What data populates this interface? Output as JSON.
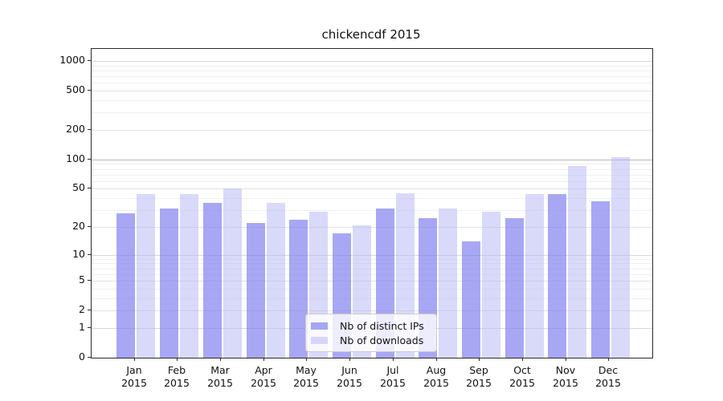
{
  "title": "chickencdf 2015",
  "colors": {
    "bar_distinct_ips": "#8282f0",
    "bar_distinct_ips_alpha": 0.7,
    "bar_downloads": "#b4b4f5",
    "bar_downloads_alpha": 0.5,
    "gridline_emphasized": "#b5b5b5",
    "gridline_decade": "#d8d8d8",
    "gridline_labeled": "#e2e2e2",
    "gridline_minor": "#f0f0f0",
    "axis_spine": "#2a2a2a"
  },
  "legend": {
    "items": [
      {
        "label": "Nb of distinct IPs",
        "color": "#8282f0",
        "alpha": 0.7
      },
      {
        "label": "Nb of downloads",
        "color": "#b4b4f5",
        "alpha": 0.5
      }
    ]
  },
  "y_axis": {
    "tick_values": [
      0,
      1,
      2,
      5,
      10,
      20,
      50,
      100,
      200,
      500,
      1000
    ],
    "tick_labels": [
      "0",
      "1",
      "2",
      "5",
      "10",
      "20",
      "50",
      "100",
      "200",
      "500",
      "1000"
    ],
    "emphasized_gridline": 100
  },
  "x_axis": {
    "months": [
      "Jan",
      "Feb",
      "Mar",
      "Apr",
      "May",
      "Jun",
      "Jul",
      "Aug",
      "Sep",
      "Oct",
      "Nov",
      "Dec"
    ],
    "year": "2015"
  },
  "chart_data": {
    "type": "bar",
    "title": "chickencdf 2015",
    "xlabel": "",
    "ylabel": "",
    "yscale": "log1p",
    "ylim": [
      0,
      1000
    ],
    "y_ticks": [
      0,
      1,
      2,
      5,
      10,
      20,
      50,
      100,
      200,
      500,
      1000
    ],
    "grid": true,
    "legend_position": "lower center",
    "categories": [
      "Jan 2015",
      "Feb 2015",
      "Mar 2015",
      "Apr 2015",
      "May 2015",
      "Jun 2015",
      "Jul 2015",
      "Aug 2015",
      "Sep 2015",
      "Oct 2015",
      "Nov 2015",
      "Dec 2015"
    ],
    "series": [
      {
        "name": "Nb of distinct IPs",
        "values": [
          28,
          31,
          36,
          22,
          24,
          17,
          31,
          25,
          14,
          25,
          44,
          37
        ]
      },
      {
        "name": "Nb of downloads",
        "values": [
          44,
          44,
          50,
          36,
          29,
          21,
          45,
          31,
          29,
          44,
          85,
          106
        ]
      }
    ]
  }
}
